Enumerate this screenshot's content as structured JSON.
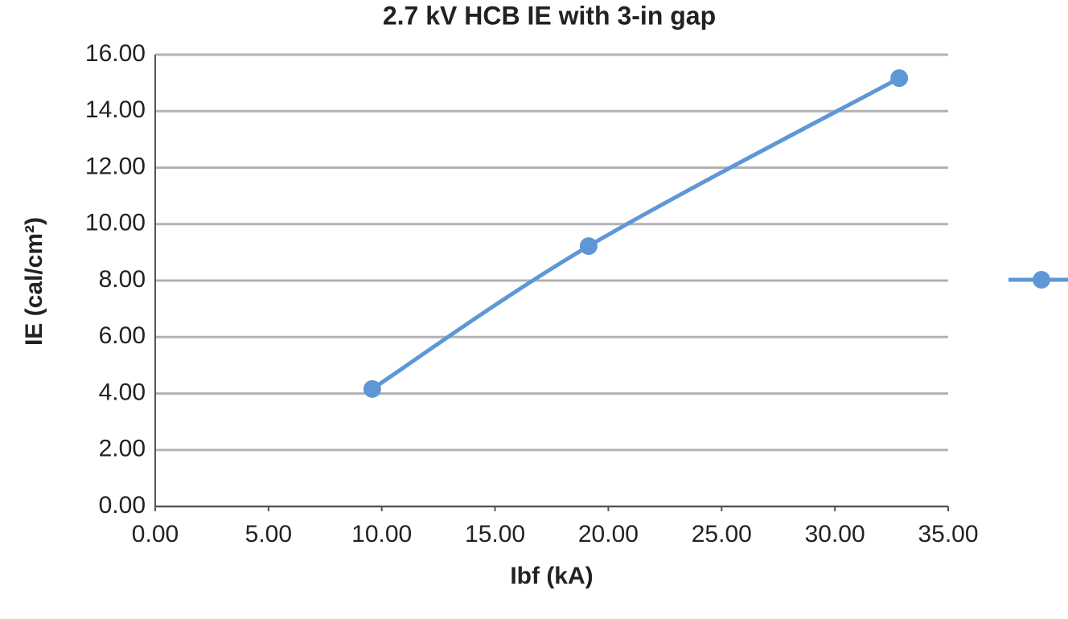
{
  "chart_data": {
    "type": "line",
    "title": "2.7 kV HCB IE with 3-in gap",
    "x_label": "Ibf (kA)",
    "y_label": "IE (cal/cm²)",
    "x": [
      9.58,
      19.13,
      32.84
    ],
    "series": [
      {
        "color": "#5f97d6",
        "values": [
          4.16,
          9.22,
          15.17
        ]
      }
    ],
    "xlim": [
      0,
      35
    ],
    "xticks": [
      {
        "value": 0,
        "label": "0.00"
      },
      {
        "value": 5,
        "label": "5.00"
      },
      {
        "value": 10,
        "label": "10.00"
      },
      {
        "value": 15,
        "label": "15.00"
      },
      {
        "value": 20,
        "label": "20.00"
      },
      {
        "value": 25,
        "label": "25.00"
      },
      {
        "value": 30,
        "label": "30.00"
      },
      {
        "value": 35,
        "label": "35.00"
      }
    ],
    "ylim": [
      0,
      16
    ],
    "yticks": [
      {
        "value": 0,
        "label": "0.00"
      },
      {
        "value": 2,
        "label": "2.00"
      },
      {
        "value": 4,
        "label": "4.00"
      },
      {
        "value": 6,
        "label": "6.00"
      },
      {
        "value": 8,
        "label": "8.00"
      },
      {
        "value": 10,
        "label": "10.00"
      },
      {
        "value": 12,
        "label": "12.00"
      },
      {
        "value": 14,
        "label": "14.00"
      },
      {
        "value": 16,
        "label": "16.00"
      }
    ],
    "grid": true,
    "smooth": true
  }
}
